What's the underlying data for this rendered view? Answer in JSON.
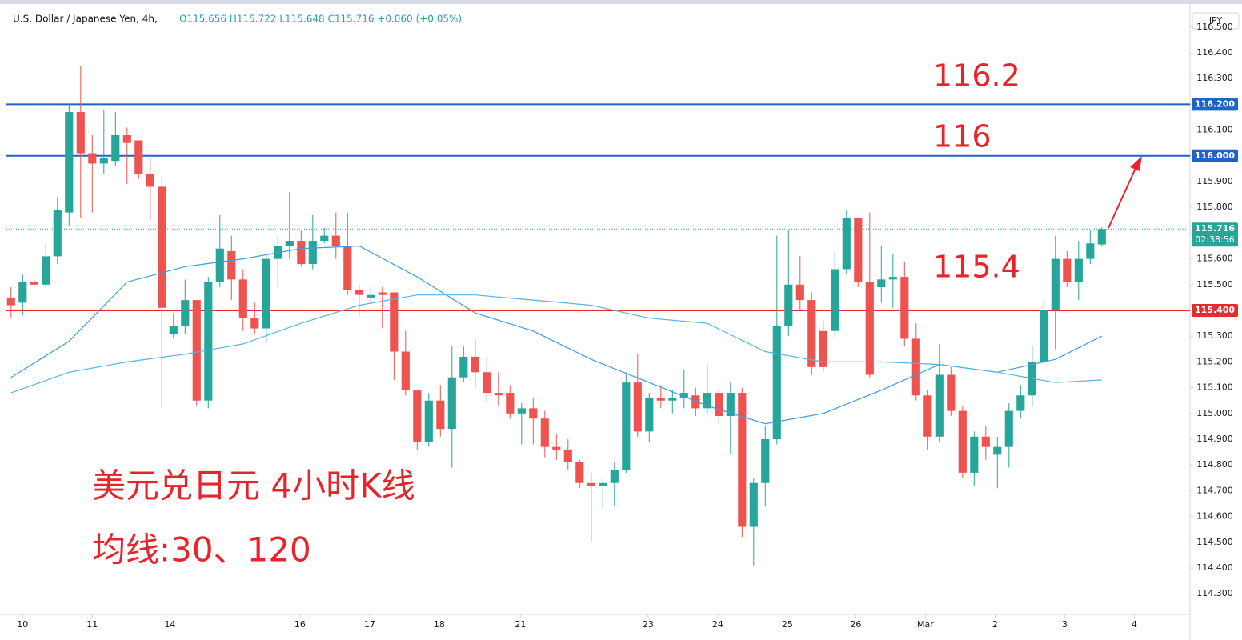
{
  "chart_data": {
    "type": "candlestick",
    "title": "U.S. Dollar / Japanese Yen, 4h,",
    "ohlc_text": "O115.656 H115.722 L115.648 C115.716 +0.060 (+0.05%)",
    "currency": "JPY",
    "up_color": "#26a69a",
    "down_color": "#ef5350",
    "open": [
      115.45,
      115.43,
      115.51,
      115.5,
      115.61,
      115.78,
      116.17,
      116.01,
      115.97,
      115.98,
      116.08,
      116.06,
      115.93,
      115.88,
      115.31,
      115.34,
      115.44,
      115.05,
      115.51,
      115.63,
      115.52,
      115.37,
      115.33,
      115.6,
      115.65,
      115.67,
      115.58,
      115.67,
      115.69,
      115.65,
      115.48,
      115.45,
      115.47,
      115.47,
      115.24,
      115.09,
      114.89,
      115.05,
      114.94,
      115.14,
      115.22,
      115.16,
      115.08,
      115.08,
      115.0,
      115.02,
      114.98,
      114.87,
      114.86,
      114.81,
      114.73,
      114.72,
      114.73,
      114.78,
      115.12,
      114.93,
      115.06,
      115.05,
      115.06,
      115.07,
      115.02,
      115.08,
      114.99,
      115.08,
      114.56,
      114.73,
      114.9,
      115.34,
      115.5,
      115.44,
      115.32,
      115.32,
      115.56,
      115.76,
      115.51,
      115.49,
      115.52,
      115.53,
      115.29,
      115.07,
      114.91,
      115.15,
      115.01,
      114.77,
      114.91,
      114.84,
      114.87,
      115.01,
      115.07,
      115.2,
      115.4,
      115.6,
      115.51,
      115.6,
      115.656
    ],
    "high": [
      115.49,
      115.54,
      115.52,
      115.66,
      115.84,
      116.2,
      116.35,
      116.08,
      116.18,
      116.17,
      116.11,
      116.06,
      115.99,
      115.92,
      115.39,
      115.52,
      115.44,
      115.53,
      115.77,
      115.69,
      115.56,
      115.43,
      115.62,
      115.69,
      115.86,
      115.71,
      115.77,
      115.72,
      115.78,
      115.78,
      115.5,
      115.49,
      115.49,
      115.47,
      115.32,
      115.09,
      115.08,
      115.11,
      115.26,
      115.26,
      115.29,
      115.22,
      115.16,
      115.11,
      115.04,
      115.06,
      115.01,
      114.92,
      114.9,
      114.82,
      114.77,
      114.75,
      114.81,
      115.16,
      115.23,
      115.08,
      115.11,
      115.09,
      115.17,
      115.1,
      115.19,
      115.1,
      115.12,
      115.1,
      114.75,
      114.95,
      115.69,
      115.71,
      115.61,
      115.47,
      115.36,
      115.63,
      115.79,
      115.76,
      115.78,
      115.65,
      115.62,
      115.59,
      115.35,
      115.09,
      115.27,
      115.18,
      115.03,
      114.93,
      114.95,
      114.91,
      115.04,
      115.11,
      115.26,
      115.44,
      115.69,
      115.63,
      115.67,
      115.71,
      115.722
    ],
    "low": [
      115.37,
      115.38,
      115.5,
      115.49,
      115.58,
      115.73,
      115.76,
      115.78,
      115.93,
      115.96,
      115.89,
      115.91,
      115.75,
      115.02,
      115.29,
      115.31,
      115.03,
      115.02,
      115.49,
      115.44,
      115.32,
      115.31,
      115.28,
      115.49,
      115.6,
      115.57,
      115.56,
      115.66,
      115.6,
      115.46,
      115.38,
      115.43,
      115.33,
      115.13,
      115.07,
      114.86,
      114.87,
      114.91,
      114.79,
      115.12,
      115.1,
      115.04,
      115.03,
      114.98,
      114.88,
      114.88,
      114.83,
      114.82,
      114.78,
      114.71,
      114.5,
      114.63,
      114.64,
      114.77,
      114.91,
      114.89,
      115.02,
      115.0,
      115.02,
      114.99,
      115.0,
      114.96,
      114.84,
      114.52,
      114.41,
      114.64,
      114.88,
      115.3,
      115.4,
      115.15,
      115.16,
      115.29,
      115.54,
      115.49,
      115.14,
      115.43,
      115.41,
      115.26,
      115.05,
      114.86,
      114.89,
      114.99,
      114.75,
      114.72,
      114.82,
      114.71,
      114.79,
      114.98,
      115.03,
      115.19,
      115.25,
      115.49,
      115.44,
      115.58,
      115.648
    ],
    "close": [
      115.42,
      115.51,
      115.5,
      115.61,
      115.79,
      116.17,
      116.01,
      115.97,
      115.99,
      116.08,
      116.05,
      115.93,
      115.88,
      115.41,
      115.34,
      115.44,
      115.05,
      115.51,
      115.64,
      115.52,
      115.37,
      115.33,
      115.6,
      115.65,
      115.67,
      115.58,
      115.67,
      115.69,
      115.65,
      115.48,
      115.46,
      115.46,
      115.46,
      115.24,
      115.09,
      114.89,
      115.05,
      114.94,
      115.14,
      115.22,
      115.16,
      115.08,
      115.07,
      115.0,
      115.02,
      114.98,
      114.87,
      114.86,
      114.81,
      114.73,
      114.72,
      114.73,
      114.78,
      115.12,
      114.93,
      115.06,
      115.05,
      115.06,
      115.08,
      115.02,
      115.08,
      114.99,
      115.08,
      114.56,
      114.73,
      114.9,
      115.34,
      115.5,
      115.44,
      115.18,
      115.18,
      115.56,
      115.76,
      115.51,
      115.15,
      115.52,
      115.53,
      115.29,
      115.07,
      114.91,
      115.15,
      115.01,
      114.77,
      114.91,
      114.87,
      114.87,
      115.01,
      115.07,
      115.2,
      115.4,
      115.6,
      115.51,
      115.6,
      115.66,
      115.716
    ],
    "moving_averages": [
      {
        "color": "#3d9be9",
        "x": [
          0,
          5,
          10,
          15,
          20,
          25,
          30,
          35,
          40,
          45,
          50,
          55,
          60,
          65,
          70,
          75,
          80,
          85,
          90,
          94
        ],
        "values": [
          115.14,
          115.28,
          115.51,
          115.57,
          115.6,
          115.64,
          115.65,
          115.53,
          115.39,
          115.32,
          115.21,
          115.12,
          115.03,
          114.96,
          115.0,
          115.09,
          115.19,
          115.16,
          115.21,
          115.3
        ]
      },
      {
        "color": "#54b4e4",
        "x": [
          0,
          5,
          10,
          15,
          20,
          25,
          30,
          35,
          40,
          45,
          50,
          55,
          60,
          65,
          70,
          75,
          80,
          85,
          90,
          94
        ],
        "values": [
          115.08,
          115.16,
          115.2,
          115.23,
          115.27,
          115.35,
          115.42,
          115.46,
          115.46,
          115.44,
          115.42,
          115.37,
          115.35,
          115.24,
          115.2,
          115.2,
          115.19,
          115.16,
          115.12,
          115.13
        ]
      }
    ],
    "levels": [
      {
        "value": 116.2,
        "label": "116.200",
        "color": "#1e63c8"
      },
      {
        "value": 116.0,
        "label": "116.000",
        "color": "#1e63c8"
      },
      {
        "value": 115.4,
        "label": "115.400",
        "color": "#e52b2b"
      }
    ],
    "last_price": {
      "value": 115.716,
      "label": "115.716",
      "countdown": "02:38:56",
      "color": "#26a69a"
    },
    "annotations": [
      "116.2",
      "116",
      "115.4",
      "美元兑日元 4小时K线",
      "均线:30、120"
    ],
    "annotation_color": "#e8232b",
    "xlim": [
      -0.4,
      101.6
    ],
    "xticks": [
      {
        "value": 1,
        "label": "10"
      },
      {
        "value": 7,
        "label": "11"
      },
      {
        "value": 13.7,
        "label": "14"
      },
      {
        "value": 24.9,
        "label": "16"
      },
      {
        "value": 30.9,
        "label": "17"
      },
      {
        "value": 36.9,
        "label": "18"
      },
      {
        "value": 43.9,
        "label": "21"
      },
      {
        "value": 54.9,
        "label": "23"
      },
      {
        "value": 60.9,
        "label": "24"
      },
      {
        "value": 66.9,
        "label": "25"
      },
      {
        "value": 72.8,
        "label": "26"
      },
      {
        "value": 78.8,
        "label": "Mar"
      },
      {
        "value": 84.8,
        "label": "2"
      },
      {
        "value": 90.8,
        "label": "3"
      },
      {
        "value": 96.8,
        "label": "4"
      }
    ],
    "ylim": [
      114.22,
      116.58
    ],
    "yticks": [
      {
        "value": 114.3,
        "label": "114.300"
      },
      {
        "value": 114.4,
        "label": "114.400"
      },
      {
        "value": 114.5,
        "label": "114.500"
      },
      {
        "value": 114.6,
        "label": "114.600"
      },
      {
        "value": 114.7,
        "label": "114.700"
      },
      {
        "value": 114.8,
        "label": "114.800"
      },
      {
        "value": 114.9,
        "label": "114.900"
      },
      {
        "value": 115.0,
        "label": "115.000"
      },
      {
        "value": 115.1,
        "label": "115.100"
      },
      {
        "value": 115.2,
        "label": "115.200"
      },
      {
        "value": 115.3,
        "label": "115.300"
      },
      {
        "value": 115.4,
        "label": "115.400"
      },
      {
        "value": 115.5,
        "label": "115.500"
      },
      {
        "value": 115.6,
        "label": "115.600"
      },
      {
        "value": 115.7,
        "label": "115.700"
      },
      {
        "value": 115.8,
        "label": "115.800"
      },
      {
        "value": 115.9,
        "label": "115.900"
      },
      {
        "value": 116.0,
        "label": "116.000"
      },
      {
        "value": 116.1,
        "label": "116.100"
      },
      {
        "value": 116.2,
        "label": "116.200"
      },
      {
        "value": 116.3,
        "label": "116.300"
      },
      {
        "value": 116.4,
        "label": "116.400"
      },
      {
        "value": 116.5,
        "label": "116.500"
      }
    ],
    "grid": false
  }
}
